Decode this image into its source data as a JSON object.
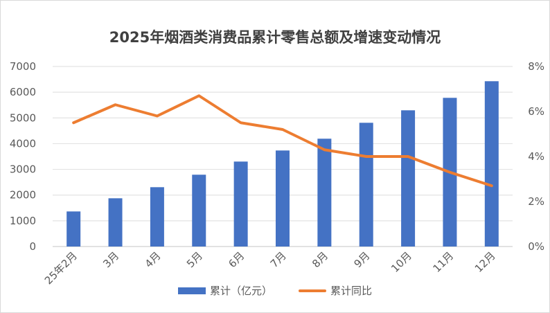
{
  "chart_data": {
    "type": "bar+line",
    "title": "2025年烟酒类消费品累计零售总额及增速变动情况",
    "categories": [
      "25年2月",
      "3月",
      "4月",
      "5月",
      "6月",
      "7月",
      "8月",
      "9月",
      "10月",
      "11月",
      "12月"
    ],
    "series": [
      {
        "name": "累计（亿元）",
        "type": "bar",
        "axis": "left",
        "color": "#4472c4",
        "values": [
          1364,
          1876,
          2307,
          2792,
          3303,
          3734,
          4192,
          4811,
          5296,
          5781,
          6427
        ]
      },
      {
        "name": "累计同比",
        "type": "line",
        "axis": "right",
        "color": "#ed7d31",
        "values": [
          5.5,
          6.3,
          5.8,
          6.7,
          5.5,
          5.2,
          4.3,
          4.0,
          4.0,
          3.3,
          2.7
        ]
      }
    ],
    "ylim_left": [
      0,
      7000
    ],
    "yticks_left": [
      "0",
      "1000",
      "2000",
      "3000",
      "4000",
      "5000",
      "6000",
      "7000"
    ],
    "ylim_right": [
      0,
      8
    ],
    "yticks_right": [
      "0%",
      "2%",
      "4%",
      "6%",
      "8%"
    ],
    "grid": true,
    "legend": "bottom"
  }
}
